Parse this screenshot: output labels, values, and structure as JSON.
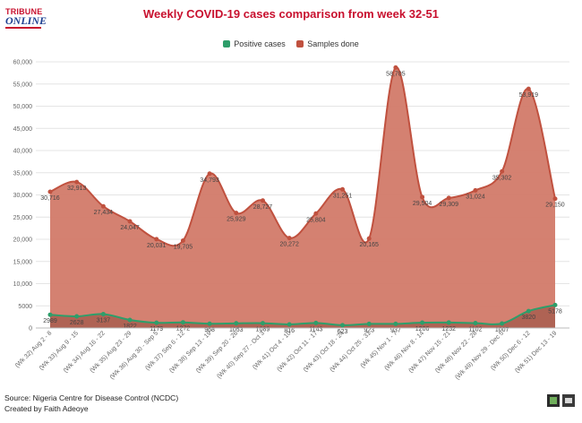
{
  "publisher": {
    "logo_line1": "TRIBUNE",
    "logo_line2": "ONLINE"
  },
  "colors": {
    "positive": "#2e9e6a",
    "samples": "#c0513f",
    "samples_fill": "#d27a69",
    "title": "#c8102e",
    "grid": "#e4e4e4"
  },
  "footer": {
    "source": "Source: Nigeria Centre for Disease Control (NCDC)",
    "credit": "Created by Faith Adeoye"
  },
  "chart_data": {
    "type": "area",
    "title": "Weekly COVID-19 cases comparison from week 32-51",
    "xlabel": "",
    "ylabel": "",
    "ylim": [
      0,
      60000
    ],
    "yticks": [
      0,
      5000,
      10000,
      15000,
      20000,
      25000,
      30000,
      35000,
      40000,
      45000,
      50000,
      55000,
      60000
    ],
    "ytick_labels": [
      "0",
      "5000",
      "10,000",
      "15,000",
      "20,000",
      "25,000",
      "30,000",
      "35,000",
      "40,000",
      "45,000",
      "50,000",
      "55,000",
      "60,000"
    ],
    "grid": true,
    "legend": "top-center",
    "categories": [
      "(Wk 32) Aug 2 - 8",
      "(Wk 33) Aug 9 - 15",
      "(Wk 34) Aug 16 - 22",
      "(Wk 35) Aug 23 - 29",
      "(Wk 36) Aug 30 - Sep 5",
      "(Wk 37) Sep 6 - 12",
      "(Wk 38) Sep 13 - 19",
      "(Wk 39) Sep 20 - 26",
      "(Wk 40) Sep 27 - Oct 3",
      "(Wk 41) Oct 4 - 10",
      "(Wk 42) Oct 11 - 17",
      "(Wk 43) Oct 18 - 24",
      "(Wk 44) Oct 25 - 31",
      "(Wk 45) Nov 1 - 7",
      "(Wk 46) Nov 8 - 14",
      "(Wk 47) Nov 15 - 21",
      "(Wk 48) Nov 22 - 28",
      "(Wk 49) Nov 29 - Dec 5",
      "(Wk 50) Dec 6 - 12",
      "(Wk 51) Dec 13 - 19"
    ],
    "series": [
      {
        "name": "Positive cases",
        "values": [
          2989,
          2628,
          3137,
          1822,
          1179,
          1272,
          968,
          1053,
          1089,
          816,
          1143,
          623,
          923,
          937,
          1206,
          1232,
          1102,
          1007,
          3820,
          5178
        ],
        "labels": [
          "2989",
          "2628",
          "3137",
          "1822",
          "1179",
          "1272",
          "968",
          "1053",
          "1089",
          "816",
          "1143",
          "623",
          "923",
          "937",
          "1206",
          "1232",
          "1102",
          "1007",
          "3820",
          "5178"
        ]
      },
      {
        "name": "Samples done",
        "values": [
          30716,
          32913,
          27434,
          24047,
          20031,
          19705,
          34793,
          25929,
          28727,
          20272,
          25804,
          31251,
          20165,
          58705,
          29504,
          29309,
          31024,
          35302,
          53919,
          29150
        ],
        "labels": [
          "30,716",
          "32,913",
          "27,434",
          "24,047",
          "20,031",
          "19,705",
          "34,793",
          "25,929",
          "28,727",
          "20,272",
          "25,804",
          "31,251",
          "20,165",
          "58,705",
          "29,504",
          "29,309",
          "31,024",
          "35,302",
          "53,919",
          "29,150"
        ]
      }
    ]
  }
}
